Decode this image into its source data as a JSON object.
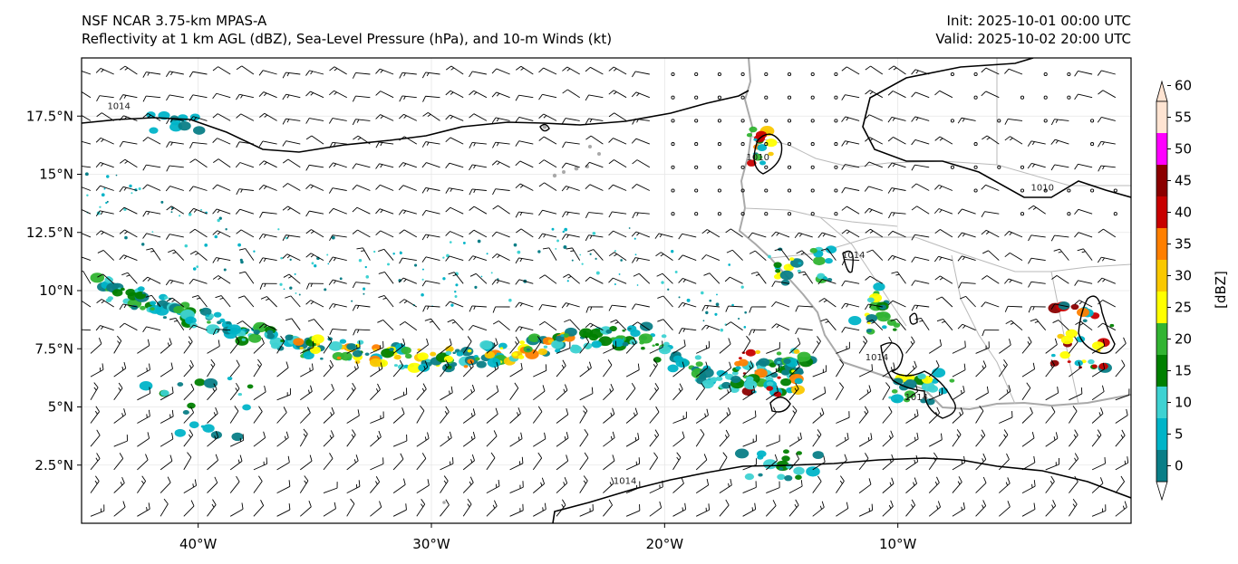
{
  "title": {
    "model": "NSF NCAR 3.75-km MPAS-A",
    "fields": "Reflectivity at 1 km AGL (dBZ), Sea-Level Pressure (hPa), and 10-m Winds (kt)",
    "init": "Init: 2025-10-01 00:00 UTC",
    "valid": "Valid: 2025-10-02 20:00 UTC"
  },
  "map": {
    "lon_range": [
      -45,
      0
    ],
    "lat_range": [
      0,
      20
    ],
    "lon_ticks": [
      {
        "value": -40,
        "label": "40°W"
      },
      {
        "value": -30,
        "label": "30°W"
      },
      {
        "value": -20,
        "label": "20°W"
      },
      {
        "value": -10,
        "label": "10°W"
      }
    ],
    "lat_ticks": [
      {
        "value": 2.5,
        "label": "2.5°N"
      },
      {
        "value": 5,
        "label": "5°N"
      },
      {
        "value": 7.5,
        "label": "7.5°N"
      },
      {
        "value": 10,
        "label": "10°N"
      },
      {
        "value": 12.5,
        "label": "12.5°N"
      },
      {
        "value": 15,
        "label": "15°N"
      },
      {
        "value": 17.5,
        "label": "17.5°N"
      }
    ],
    "isobar_labels": [
      {
        "text": "1014",
        "lon": -43.4,
        "lat": 17.8
      },
      {
        "text": "1010",
        "lon": -16.0,
        "lat": 15.6
      },
      {
        "text": "1010",
        "lon": -3.8,
        "lat": 14.3
      },
      {
        "text": "1014",
        "lon": -11.9,
        "lat": 11.4
      },
      {
        "text": "1014",
        "lon": -10.9,
        "lat": 7.0
      },
      {
        "text": "1014",
        "lon": -9.2,
        "lat": 5.3
      },
      {
        "text": "1014",
        "lon": -21.7,
        "lat": 1.7
      }
    ]
  },
  "colorbar": {
    "unit_label": "[dBZ]",
    "ticks": [
      "0",
      "5",
      "10",
      "15",
      "20",
      "25",
      "30",
      "35",
      "40",
      "45",
      "50",
      "55",
      "60"
    ],
    "colors": [
      "#ffffff",
      "#0a7e87",
      "#00b4c8",
      "#3ed2d2",
      "#008000",
      "#32b432",
      "#ffff00",
      "#fac800",
      "#ff7f00",
      "#c80000",
      "#8b0000",
      "#ff00ff",
      "#ffe4d2"
    ]
  }
}
